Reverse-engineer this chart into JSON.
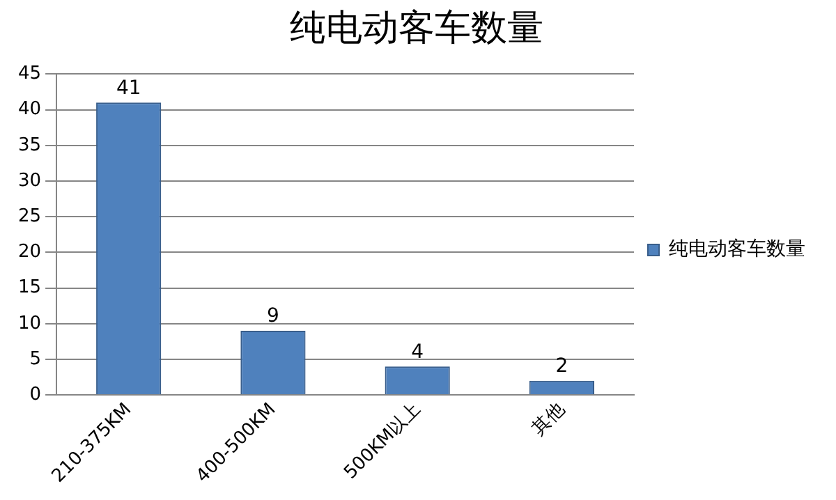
{
  "chart_data": {
    "type": "bar",
    "title": "纯电动客车数量",
    "categories": [
      "210-375KM",
      "400-500KM",
      "500KM以上",
      "其他"
    ],
    "series": [
      {
        "name": "纯电动客车数量",
        "color": "#4f81bd",
        "values": [
          41,
          9,
          4,
          2
        ]
      }
    ],
    "ylim": [
      0,
      45
    ],
    "yticks": [
      0,
      5,
      10,
      15,
      20,
      25,
      30,
      35,
      40,
      45
    ],
    "grid": "y",
    "legend": "right",
    "data_labels": true
  }
}
